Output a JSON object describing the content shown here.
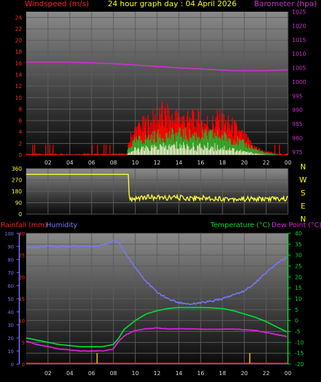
{
  "colors": {
    "wind_speed": "#ff2a2a",
    "wind_gust": "#ff0000",
    "wind_avg": "#00cc33",
    "wind_low": "#e8ffe0",
    "barometer": "#cc33cc",
    "direction": "#ffff33",
    "humidity": "#7777ff",
    "temperature": "#00dd33",
    "dewpoint": "#dd22dd",
    "rainfall": "#ff2a2a",
    "rain_marker": "#ffcc00",
    "title": "#ffff00"
  },
  "header": {
    "windspeed_label": "Windspeed (m/s)",
    "title": "24 hour graph day : 04 April 2026",
    "barometer_label": "Barometer (hpa)"
  },
  "footer_labels": {
    "rainfall_label": "Rainfall (mm)",
    "humidity_label": "Humidity",
    "temperature_label": "Temperature (°C)",
    "dewpoint_label": "Dew Point (°C)"
  },
  "direction_axis_letters": [
    "N",
    "W",
    "S",
    "E",
    "N"
  ],
  "chart_data": [
    {
      "type": "area",
      "title": "24 hour graph day : 04 April 2026",
      "x_tick_labels": [
        "02",
        "04",
        "06",
        "08",
        "10",
        "12",
        "14",
        "16",
        "18",
        "20",
        "22",
        "00"
      ],
      "y_left_label": "Windspeed (m/s)",
      "y_left_range": [
        0,
        25
      ],
      "y_left_ticks": [
        "0",
        "2",
        "4",
        "6",
        "8",
        "10",
        "12",
        "14",
        "16",
        "18",
        "20",
        "22",
        "24"
      ],
      "y_right_label": "Barometer (hpa)",
      "y_right_range": [
        974,
        1025
      ],
      "y_right_ticks": [
        "975",
        "980",
        "985",
        "990",
        "995",
        "1000",
        "1005",
        "1010",
        "1015",
        "1020",
        "1025"
      ],
      "grid": true,
      "series": [
        {
          "name": "Windspeed (m/s)",
          "kind": "gust_envelope",
          "x": [
            0,
            1,
            2,
            3,
            4,
            5,
            6,
            7,
            8,
            9,
            9.5,
            10,
            10.5,
            11,
            11.5,
            12,
            12.5,
            13,
            13.5,
            14,
            14.5,
            15,
            15.5,
            16,
            16.5,
            17,
            17.5,
            18,
            18.5,
            19,
            19.5,
            20,
            20.5,
            21,
            21.5,
            22,
            23,
            24
          ],
          "values": [
            0.5,
            0.5,
            0.5,
            0.5,
            0.5,
            0.5,
            0.5,
            0.5,
            0.5,
            0.5,
            3,
            5,
            5.5,
            6,
            6.5,
            7,
            8,
            7.5,
            7,
            7.5,
            7,
            6.5,
            7,
            6.5,
            6.5,
            6,
            7,
            6.5,
            6,
            5.5,
            4.5,
            3.5,
            2.5,
            1.5,
            1,
            0.5,
            0.5,
            0.5
          ]
        },
        {
          "name": "Average windspeed",
          "x": [
            0,
            9,
            9.5,
            10,
            11,
            12,
            13,
            14,
            15,
            16,
            17,
            18,
            19,
            20,
            21,
            22,
            24
          ],
          "values": [
            0,
            0,
            1.5,
            2.5,
            3,
            3.5,
            3.5,
            3.8,
            3.6,
            3.5,
            3.6,
            3.4,
            2.8,
            2,
            1,
            0.3,
            0
          ]
        },
        {
          "name": "Minimum windspeed",
          "x": [
            0,
            9,
            9.5,
            10,
            11,
            12,
            13,
            14,
            15,
            16,
            17,
            18,
            19,
            20,
            21,
            22,
            24
          ],
          "values": [
            0,
            0,
            0.5,
            1,
            1.2,
            1.5,
            1.5,
            1.8,
            1.6,
            1.5,
            1.6,
            1.4,
            1,
            0.6,
            0.3,
            0,
            0
          ]
        },
        {
          "name": "Barometer (hpa)",
          "axis": "right",
          "x": [
            0,
            2,
            4,
            6,
            8,
            10,
            12,
            14,
            16,
            18,
            19,
            20,
            22,
            24
          ],
          "values": [
            1007,
            1007,
            1007,
            1006.8,
            1006.5,
            1006,
            1005.5,
            1005,
            1004.6,
            1004.2,
            1004,
            1004,
            1004,
            1004.3
          ]
        }
      ]
    },
    {
      "type": "line",
      "x_tick_labels": [],
      "y_left_range": [
        0,
        360
      ],
      "y_left_ticks": [
        "0",
        "90",
        "180",
        "270",
        "360"
      ],
      "y_right_letters": [
        "N",
        "W",
        "S",
        "E",
        "N"
      ],
      "grid": true,
      "series": [
        {
          "name": "Wind direction (degrees)",
          "x": [
            0,
            1,
            2,
            3,
            4,
            5,
            6,
            7,
            8,
            9.4,
            9.45,
            10,
            11,
            12,
            13,
            14,
            15,
            16,
            17,
            18,
            19,
            20,
            21,
            22,
            23,
            24
          ],
          "values": [
            315,
            315,
            315,
            315,
            315,
            315,
            315,
            315,
            315,
            315,
            110,
            125,
            135,
            130,
            128,
            130,
            125,
            128,
            125,
            122,
            120,
            120,
            118,
            120,
            120,
            120
          ]
        }
      ]
    },
    {
      "type": "line",
      "x_tick_labels": [
        "02",
        "04",
        "06",
        "08",
        "10",
        "12",
        "14",
        "16",
        "18",
        "20",
        "22",
        "00"
      ],
      "y_humidity_range": [
        0,
        100
      ],
      "y_humidity_ticks": [
        "0",
        "10",
        "20",
        "30",
        "40",
        "50",
        "60",
        "70",
        "80",
        "90",
        "100"
      ],
      "y_rain_range": [
        0,
        30
      ],
      "y_rain_ticks": [
        "0",
        "5",
        "10",
        "15",
        "20",
        "25",
        "30"
      ],
      "y_right_label": "Temperature (°C)",
      "y_right_range": [
        -20,
        40
      ],
      "y_right_ticks": [
        "-20",
        "-15",
        "-10",
        "-5",
        "0",
        "5",
        "10",
        "15",
        "20",
        "25",
        "30",
        "35",
        "40"
      ],
      "grid": true,
      "series": [
        {
          "name": "Humidity",
          "axis": "humidity",
          "x": [
            0,
            2,
            4,
            6,
            7,
            7.5,
            8,
            8.5,
            9,
            10,
            11,
            12,
            13,
            14,
            15,
            16,
            17,
            18,
            19,
            20,
            21,
            22,
            23,
            24
          ],
          "values": [
            89,
            90,
            90,
            90,
            91,
            92,
            95,
            93,
            86,
            74,
            63,
            55,
            50,
            47,
            46,
            47,
            48,
            50,
            53,
            56,
            62,
            70,
            77,
            82
          ]
        },
        {
          "name": "Temperature (°C)",
          "axis": "temp",
          "x": [
            0,
            1,
            2,
            3,
            4,
            5,
            6,
            7,
            7.5,
            8,
            8.5,
            9,
            10,
            11,
            12,
            13,
            14,
            15,
            16,
            17,
            18,
            19,
            20,
            21,
            22,
            23,
            24
          ],
          "values": [
            -8,
            -9,
            -10,
            -11,
            -11.5,
            -12,
            -12,
            -12,
            -11.5,
            -11,
            -8,
            -4,
            0,
            3,
            4.5,
            5.5,
            6,
            6,
            6,
            5.8,
            5.5,
            4.5,
            3,
            1.5,
            -0.5,
            -3,
            -5.5
          ]
        },
        {
          "name": "Dew Point (°C)",
          "axis": "temp",
          "x": [
            0,
            1,
            2,
            3,
            4,
            5,
            6,
            7,
            7.5,
            8,
            8.5,
            9,
            10,
            11,
            12,
            13,
            14,
            15,
            16,
            17,
            18,
            19,
            20,
            21,
            22,
            23,
            24
          ],
          "values": [
            -9.5,
            -11,
            -12,
            -13,
            -13.5,
            -14,
            -14,
            -14,
            -13.5,
            -13,
            -9.5,
            -7,
            -4.5,
            -3.8,
            -3.5,
            -3.8,
            -3.8,
            -3.8,
            -4,
            -4,
            -4,
            -4,
            -4.2,
            -4.5,
            -5.5,
            -6.5,
            -7.5
          ]
        },
        {
          "name": "Rainfall (mm)",
          "axis": "rain",
          "x": [
            0,
            24
          ],
          "values": [
            0,
            0
          ]
        }
      ],
      "rain_event_hours": [
        6.5,
        20.5
      ]
    }
  ]
}
